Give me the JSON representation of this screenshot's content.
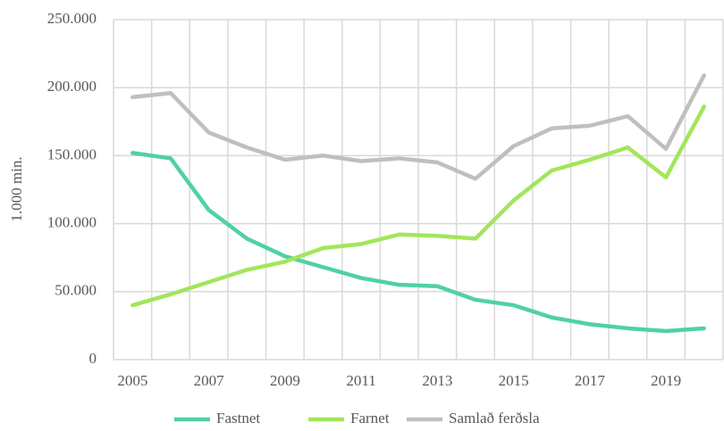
{
  "chart_data": {
    "type": "line",
    "y_axis_label": "1.000 min.",
    "categories": [
      "2005",
      null,
      "2007",
      null,
      "2009",
      null,
      "2011",
      null,
      "2013",
      null,
      "2015",
      null,
      "2017",
      null,
      "2019",
      null
    ],
    "series": [
      {
        "name": "Fastnet",
        "color": "#4fd1a5",
        "values": [
          152000,
          148000,
          110000,
          89000,
          76000,
          68000,
          60000,
          55000,
          54000,
          44000,
          40000,
          31000,
          26000,
          23000,
          21000,
          23000
        ]
      },
      {
        "name": "Farnet",
        "color": "#a2e65a",
        "values": [
          40000,
          48000,
          57000,
          66000,
          72000,
          82000,
          85000,
          92000,
          91000,
          89000,
          117000,
          139000,
          147000,
          156000,
          134000,
          186000
        ]
      },
      {
        "name": "Samlað ferðsla",
        "color": "#bfbfbf",
        "values": [
          193000,
          196000,
          167000,
          156000,
          147000,
          150000,
          146000,
          148000,
          145000,
          133000,
          157000,
          170000,
          172000,
          179000,
          155000,
          209000
        ]
      }
    ],
    "ylim": [
      0,
      250000
    ],
    "yticks": [
      0,
      {
        "value": 50000,
        "label": "50.000"
      },
      {
        "value": 100000,
        "label": "100.000"
      },
      {
        "value": 150000,
        "label": "150.000"
      },
      {
        "value": 200000,
        "label": "200.000"
      },
      {
        "value": 250000,
        "label": "250.000"
      }
    ],
    "grid": true,
    "legend": "bottom"
  }
}
